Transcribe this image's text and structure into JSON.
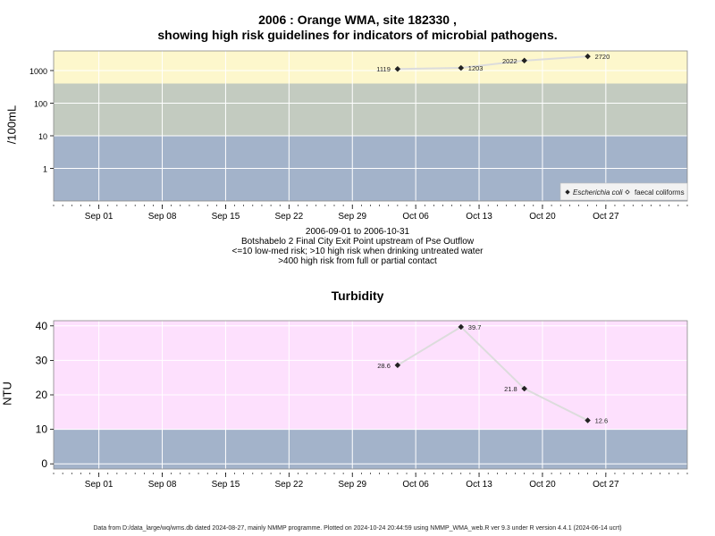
{
  "chart_data": [
    {
      "type": "line",
      "title": "2006 : Orange WMA, site 182330 ,",
      "subtitle": "showing high risk guidelines for indicators of microbial pathogens.",
      "ylabel": "/100mL",
      "yscale": "log",
      "ylim": [
        0.1,
        4000
      ],
      "yticks": [
        1,
        10,
        100,
        1000
      ],
      "ytick_labels": [
        "1",
        "10",
        "100",
        "1000"
      ],
      "xlim": [
        "2006-08-27",
        "2006-11-05"
      ],
      "xticks": [
        "2006-09-01",
        "2006-09-08",
        "2006-09-15",
        "2006-09-22",
        "2006-09-29",
        "2006-10-06",
        "2006-10-13",
        "2006-10-20",
        "2006-10-27"
      ],
      "xtick_labels": [
        "Sep 01",
        "Sep 08",
        "Sep 15",
        "Sep 22",
        "Sep 29",
        "Oct 06",
        "Oct 13",
        "Oct 20",
        "Oct 27"
      ],
      "bands": [
        {
          "from": 0.1,
          "to": 10,
          "color": "#a3b3ca"
        },
        {
          "from": 10,
          "to": 400,
          "color": "#c3cbc0"
        },
        {
          "from": 400,
          "to": 4000,
          "color": "#fdf7cc"
        }
      ],
      "grid": true,
      "legend_position": "bottom-right",
      "series": [
        {
          "name": "Escherichia coli",
          "marker": "filled-diamond",
          "x": [
            "2006-10-04",
            "2006-10-11",
            "2006-10-18",
            "2006-10-25"
          ],
          "y": [
            1119,
            1203,
            2022,
            2720
          ],
          "labels": [
            "1119",
            "1203",
            "2022",
            "2720"
          ],
          "label_side": [
            "left",
            "right",
            "left",
            "right"
          ]
        }
      ],
      "legend": [
        {
          "label": "Escherichia coli",
          "marker": "filled-diamond",
          "italic": true
        },
        {
          "label": "faecal coliforms",
          "marker": "open-diamond",
          "italic": false
        }
      ],
      "caption": [
        "2006-09-01 to 2006-10-31",
        "Botshabelo 2 Final City Exit Point upstream of Pse Outflow",
        "<=10 low-med risk; >10 high risk when drinking untreated water",
        ">400 high risk from full or partial contact"
      ]
    },
    {
      "type": "line",
      "title": "Turbidity",
      "ylabel": "NTU",
      "ylim": [
        -1.5,
        41.5
      ],
      "yticks": [
        0,
        10,
        20,
        30,
        40
      ],
      "ytick_labels": [
        "0",
        "10",
        "20",
        "30",
        "40"
      ],
      "xlim": [
        "2006-08-27",
        "2006-11-05"
      ],
      "xticks": [
        "2006-09-01",
        "2006-09-08",
        "2006-09-15",
        "2006-09-22",
        "2006-09-29",
        "2006-10-06",
        "2006-10-13",
        "2006-10-20",
        "2006-10-27"
      ],
      "xtick_labels": [
        "Sep 01",
        "Sep 08",
        "Sep 15",
        "Sep 22",
        "Sep 29",
        "Oct 06",
        "Oct 13",
        "Oct 20",
        "Oct 27"
      ],
      "bands": [
        {
          "from": -1.5,
          "to": 10,
          "color": "#a3b3ca"
        },
        {
          "from": 10,
          "to": 41.5,
          "color": "#fde0fd"
        }
      ],
      "grid": true,
      "series": [
        {
          "name": "",
          "marker": "filled-diamond",
          "x": [
            "2006-10-04",
            "2006-10-11",
            "2006-10-18",
            "2006-10-25"
          ],
          "y": [
            28.6,
            39.7,
            21.8,
            12.6
          ],
          "labels": [
            "28.6",
            "39.7",
            "21.8",
            "12.6"
          ],
          "label_side": [
            "left",
            "right",
            "left",
            "right"
          ]
        }
      ]
    }
  ],
  "footer": "Data from D:/data_large/wq/wms.db dated 2024-08-27, mainly NMMP programme. Plotted on 2024-10-24 20:44:59 using NMMP_WMA_web.R ver 9.3 under R version 4.4.1 (2024-06-14 ucrt)"
}
